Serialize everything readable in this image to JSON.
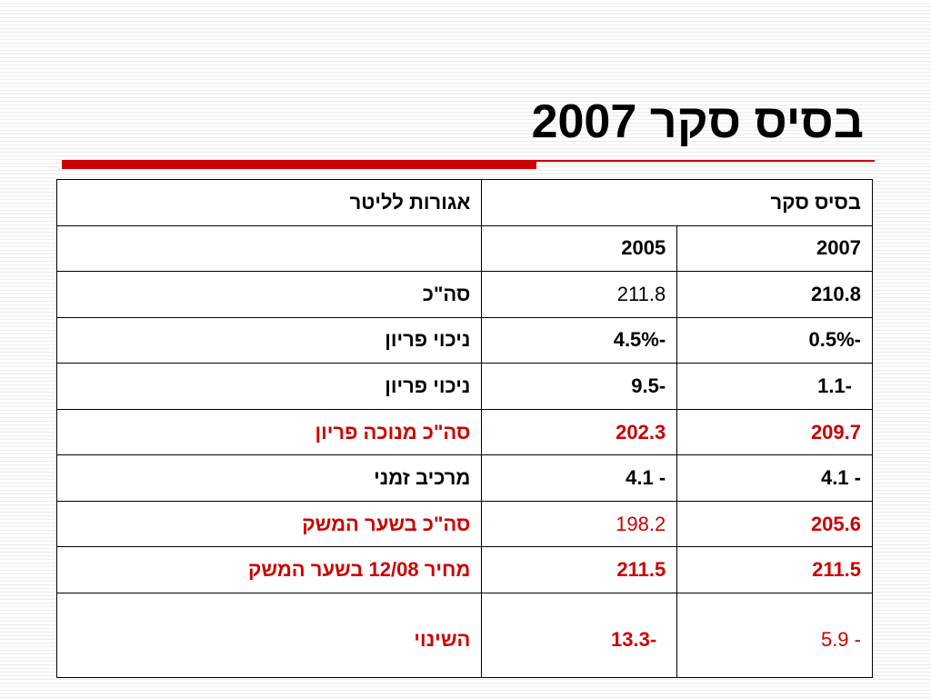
{
  "title": "בסיס סקר 2007",
  "table": {
    "header_label": "אגורות לליטר",
    "header_group": "בסיס סקר",
    "year_2005": "2005",
    "year_2007": "2007",
    "rows": [
      {
        "label": "סה\"כ",
        "v2005": "211.8",
        "v2007": "210.8"
      },
      {
        "label": "ניכוי פריון",
        "v2005": "-4.5%",
        "v2007": "-0.5%"
      },
      {
        "label": "ניכוי פריון",
        "v2005": "-9.5",
        "v2007": "-1.1"
      },
      {
        "label": "סה\"כ מנוכה פריון",
        "v2005": "202.3",
        "v2007": "209.7"
      },
      {
        "label": "מרכיב זמני",
        "v2005": "- 4.1",
        "v2007": "- 4.1"
      },
      {
        "label": "סה\"כ בשער המשק",
        "v2005": "198.2",
        "v2007": "205.6"
      },
      {
        "label": "מחיר 12/08 בשער המשק",
        "v2005": "211.5",
        "v2007": "211.5"
      },
      {
        "label": "השינוי",
        "v2005": "-13.3",
        "v2007": "- 5.9"
      }
    ]
  },
  "colors": {
    "accent": "#cc0000",
    "text": "#000000"
  }
}
